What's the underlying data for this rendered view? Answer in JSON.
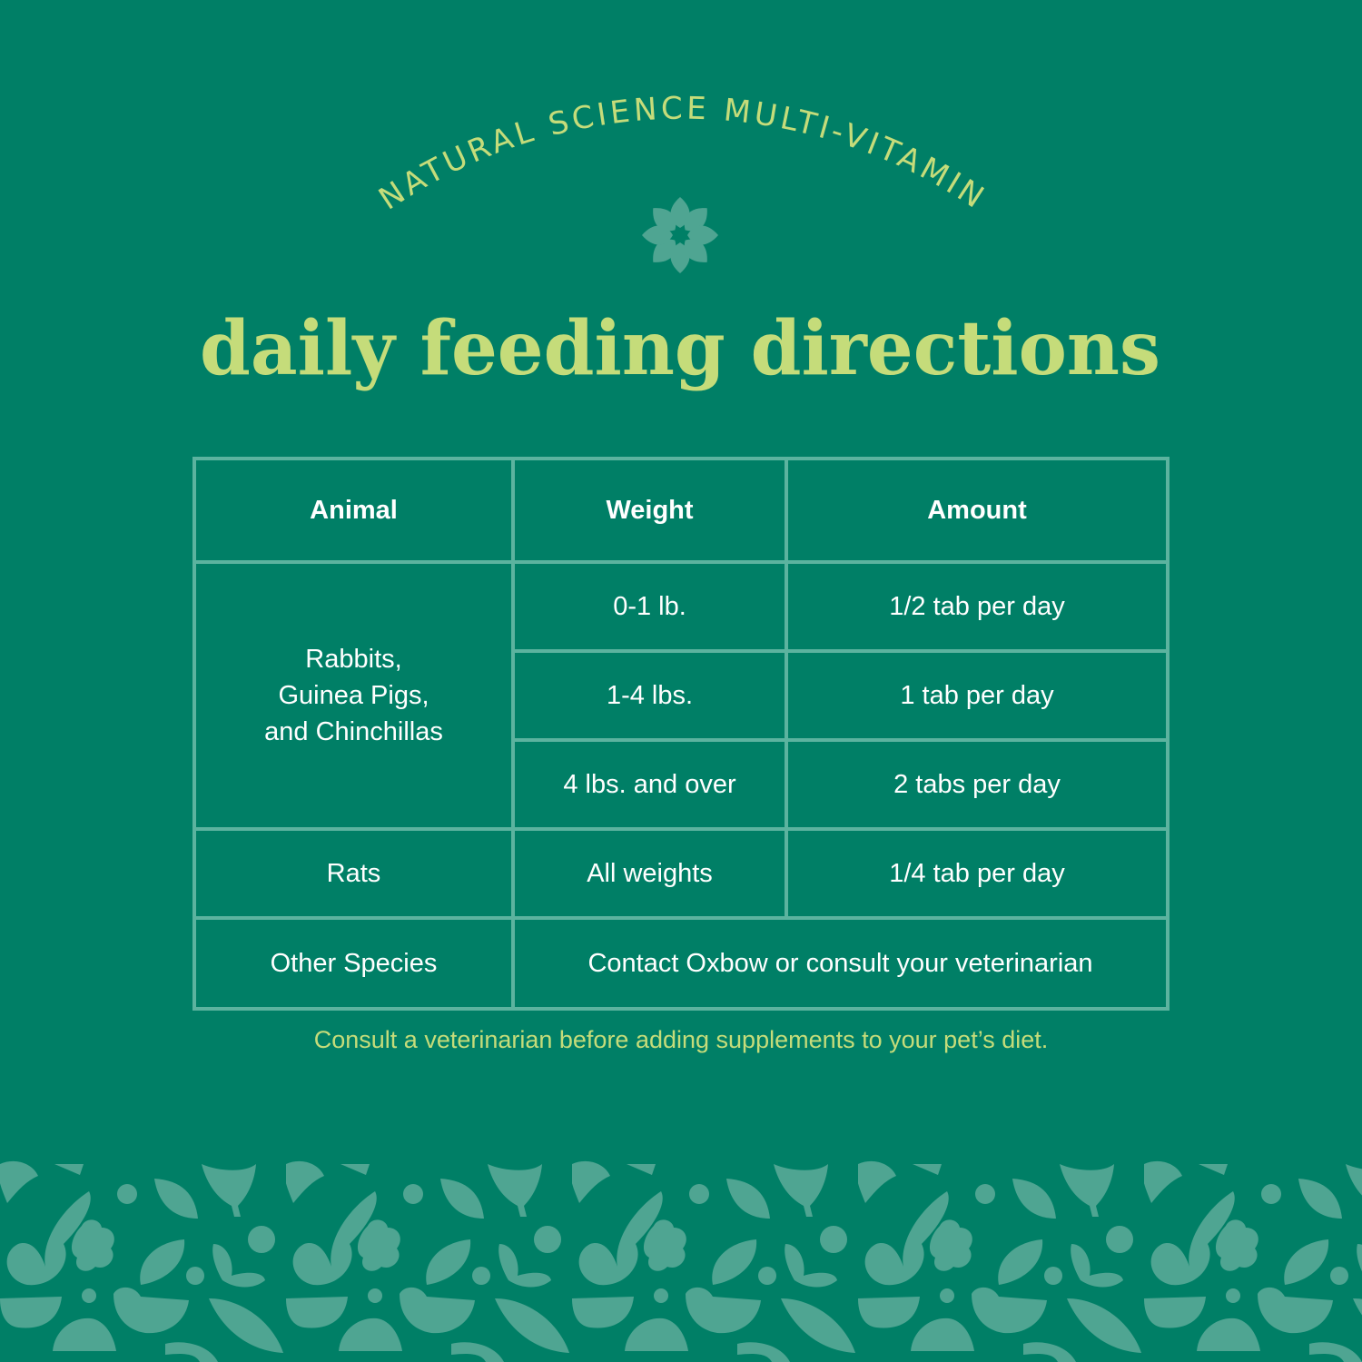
{
  "arc_heading": "NATURAL SCIENCE MULTI-VITAMIN",
  "title": "daily feeding directions",
  "colors": {
    "background": "#007f66",
    "accent": "#c5dc7a",
    "pattern": "#4fa592",
    "table_lines": "#5cb39f"
  },
  "icons": {
    "emblem": "eight-petal-flower-icon"
  },
  "table": {
    "headers": [
      "Animal",
      "Weight",
      "Amount"
    ],
    "group_animal": "Rabbits, Guinea Pigs, and Chinchillas",
    "group_animal_lines": [
      "Rabbits,",
      "Guinea Pigs,",
      "and Chinchillas"
    ],
    "group_rows": [
      {
        "weight": "0-1 lb.",
        "amount": "1/2 tab per day"
      },
      {
        "weight": "1-4 lbs.",
        "amount": "1 tab per day"
      },
      {
        "weight": "4 lbs. and over",
        "amount": "2 tabs per day"
      }
    ],
    "rats": {
      "animal": "Rats",
      "weight": "All weights",
      "amount": "1/4 tab per day"
    },
    "other": {
      "animal": "Other Species",
      "note": "Contact Oxbow or consult your veterinarian"
    }
  },
  "footnote": "Consult a veterinarian before adding supplements to your pet’s diet."
}
